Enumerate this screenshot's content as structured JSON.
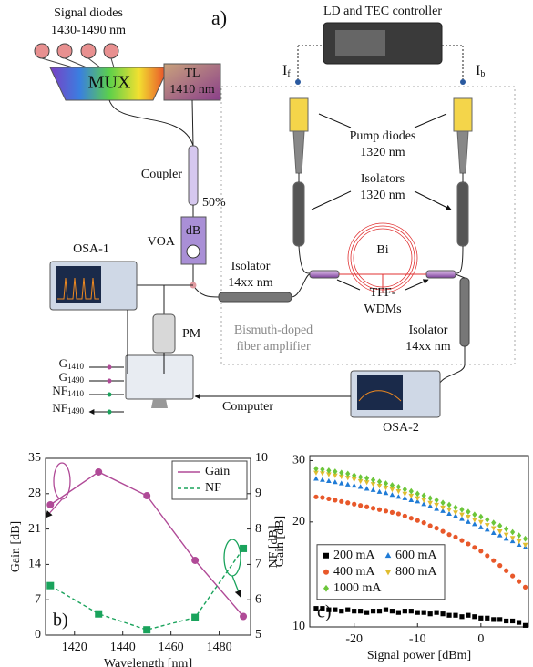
{
  "diagram": {
    "panel": "a)",
    "signal_diodes": "Signal diodes",
    "signal_range": "1430-1490 nm",
    "mux": "MUX",
    "tl": "TL",
    "tl_wavelength": "1410 nm",
    "controller": "LD and TEC controller",
    "i_f": {
      "main": "I",
      "sub": "f"
    },
    "i_b": {
      "main": "I",
      "sub": "b"
    },
    "pump": "Pump diodes",
    "pump_wavelength": "1320 nm",
    "isolators": "Isolators",
    "isolators_wavelength": "1320 nm",
    "coupler": "Coupler",
    "ratio": "50%",
    "voa_unit": "dB",
    "voa": "VOA",
    "osa1": "OSA-1",
    "bi": "Bi",
    "isolator_left": "Isolator",
    "isolator_left_wavelength": "14xx nm",
    "tff": "TFF-",
    "wdms": "WDMs",
    "pm": "PM",
    "bdfa": [
      "Bismuth-doped",
      "fiber amplifier"
    ],
    "isolator_right": "Isolator",
    "isolator_right_wavelength": "14xx nm",
    "outputs": [
      {
        "main": "G",
        "sub": "1410"
      },
      {
        "main": "G",
        "sub": "1490"
      },
      {
        "main": "NF",
        "sub": "1410"
      },
      {
        "main": "NF",
        "sub": "1490"
      }
    ],
    "computer": "Computer",
    "osa2": "OSA-2"
  },
  "chart_data": [
    {
      "type": "line",
      "panel_label": "b)",
      "xlabel": "Wavelength [nm]",
      "ylabel": "Gain [dB]",
      "y2label": "NF [dB]",
      "x": [
        1410,
        1430,
        1450,
        1470,
        1490
      ],
      "xlim": [
        1408,
        1493
      ],
      "xticks": [
        1420,
        1440,
        1460,
        1480
      ],
      "ylim": [
        0,
        35
      ],
      "yticks": [
        0,
        7,
        14,
        21,
        28,
        35
      ],
      "y2lim": [
        5,
        10
      ],
      "y2ticks": [
        5,
        6,
        7,
        8,
        9,
        10
      ],
      "legend": "upper right",
      "series": [
        {
          "name": "Gain",
          "color": "#b04a97",
          "marker": "circle",
          "line_style": "solid",
          "values": [
            25.8,
            32.3,
            27.6,
            14.8,
            3.7
          ]
        },
        {
          "name": "NF",
          "color": "#1aa35c",
          "marker": "square",
          "line_style": "dashed",
          "axis": "y2",
          "values": [
            6.4,
            5.6,
            5.15,
            5.5,
            7.45
          ]
        }
      ]
    },
    {
      "type": "scatter",
      "panel_label": "c)",
      "xlabel": "Signal power [dBm]",
      "ylabel": "Gain [dB]",
      "x": [
        -26,
        -25,
        -24,
        -23,
        -22,
        -21,
        -20,
        -19,
        -18,
        -17,
        -16,
        -15,
        -14,
        -13,
        -12,
        -11,
        -10,
        -9,
        -8,
        -7,
        -6,
        -5,
        -4,
        -3,
        -2,
        -1,
        0,
        1,
        2,
        3,
        4,
        5,
        6,
        7
      ],
      "xlim": [
        -27,
        7.5
      ],
      "xticks": [
        -20,
        -10,
        0
      ],
      "ylim": [
        10,
        31
      ],
      "yticks": [
        10,
        20,
        30
      ],
      "log_y": true,
      "legend": "center left",
      "series": [
        {
          "name": "200 mA",
          "color": "#000000",
          "marker": "square",
          "values": [
            11.3,
            11.3,
            11.2,
            11.2,
            11.1,
            11.2,
            11.1,
            11.1,
            11.0,
            11.1,
            11.1,
            11.2,
            11.1,
            11.0,
            11.1,
            11.1,
            11.0,
            11.0,
            10.9,
            11.0,
            10.9,
            10.8,
            10.8,
            10.7,
            10.8,
            10.7,
            10.6,
            10.6,
            10.5,
            10.5,
            10.4,
            10.4,
            10.3,
            10.1
          ]
        },
        {
          "name": "600 mA",
          "color": "#1f7bd6",
          "marker": "triangle-up",
          "values": [
            26.6,
            26.4,
            26.2,
            26.0,
            25.8,
            25.6,
            25.4,
            25.2,
            24.9,
            24.7,
            24.4,
            24.2,
            23.9,
            23.6,
            23.4,
            23.1,
            22.9,
            22.5,
            22.2,
            21.8,
            21.5,
            21.1,
            20.8,
            20.4,
            20.0,
            19.7,
            19.3,
            19.0,
            18.6,
            18.3,
            17.9,
            17.6,
            17.2,
            16.9
          ]
        },
        {
          "name": "400 mA",
          "color": "#e8582a",
          "marker": "circle",
          "values": [
            23.6,
            23.5,
            23.3,
            23.1,
            22.9,
            22.7,
            22.5,
            22.3,
            22.1,
            21.9,
            21.7,
            21.5,
            21.3,
            21.1,
            20.8,
            20.5,
            20.2,
            19.9,
            19.5,
            19.2,
            18.8,
            18.4,
            18.1,
            17.7,
            17.3,
            16.9,
            16.5,
            16.0,
            15.5,
            15.0,
            14.5,
            14.0,
            13.5,
            13.0
          ]
        },
        {
          "name": "800 mA",
          "color": "#e0bd30",
          "marker": "triangle-down",
          "values": [
            27.7,
            27.6,
            27.4,
            27.2,
            27.0,
            26.8,
            26.5,
            26.2,
            26.0,
            25.7,
            25.4,
            25.1,
            24.8,
            24.5,
            24.1,
            23.8,
            23.4,
            23.1,
            22.7,
            22.4,
            22.0,
            21.7,
            21.3,
            21.0,
            20.7,
            20.3,
            20.0,
            19.6,
            19.2,
            18.8,
            18.4,
            18.0,
            17.6,
            17.2
          ]
        },
        {
          "name": "1000 mA",
          "color": "#6cc63a",
          "marker": "diamond",
          "values": [
            28.4,
            28.3,
            28.1,
            27.9,
            27.7,
            27.5,
            27.2,
            26.9,
            26.7,
            26.4,
            26.1,
            25.8,
            25.5,
            25.2,
            24.8,
            24.5,
            24.1,
            23.8,
            23.4,
            23.1,
            22.7,
            22.4,
            22.0,
            21.7,
            21.4,
            21.0,
            20.7,
            20.3,
            19.9,
            19.5,
            19.1,
            18.7,
            18.3,
            17.9
          ]
        }
      ]
    }
  ]
}
